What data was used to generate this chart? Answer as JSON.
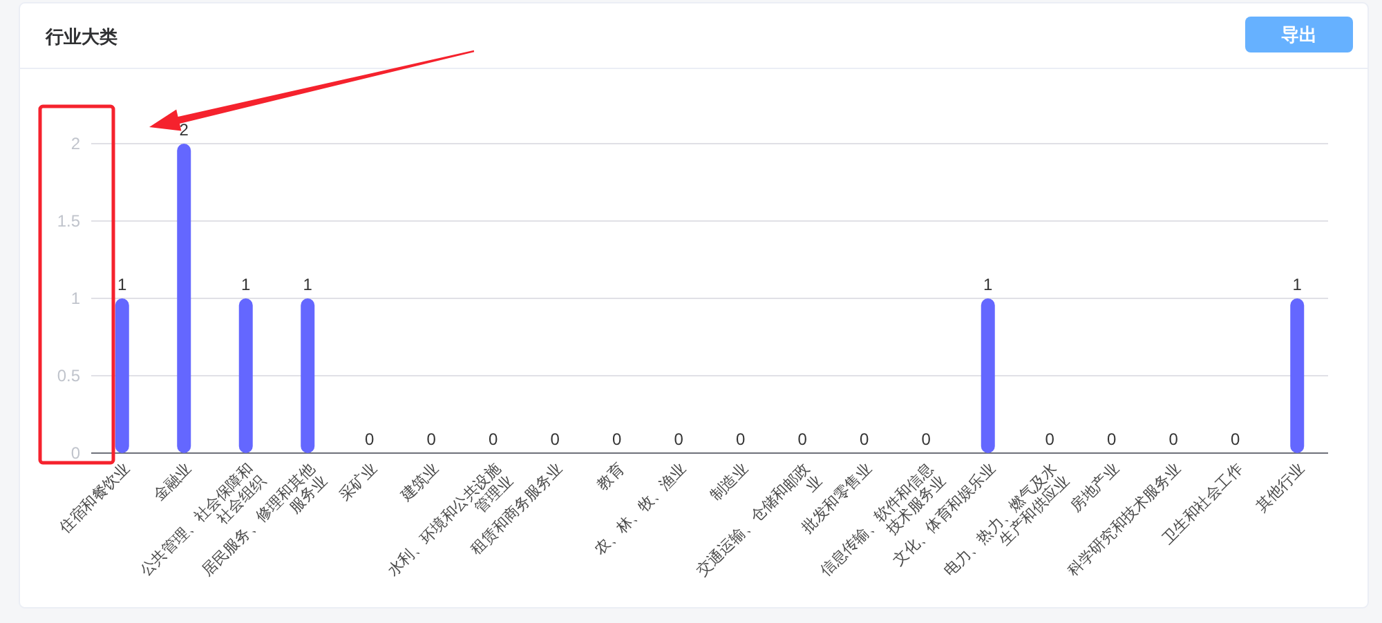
{
  "chart_data": {
    "type": "bar",
    "title": "行业大类",
    "categories": [
      "住宿和餐饮业",
      "金融业",
      "公共管理、社会保障和社会组织",
      "居民服务、修理和其他服务业",
      "采矿业",
      "建筑业",
      "水利、环境和公共设施管理业",
      "租赁和商务服务业",
      "教育",
      "农、林、牧、渔业",
      "制造业",
      "交通运输、仓储和邮政业",
      "批发和零售业",
      "信息传输、软件和信息技术服务业",
      "文化、体育和娱乐业",
      "电力、热力、燃气及水生产和供应业",
      "房地产业",
      "科学研究和技术服务业",
      "卫生和社会工作",
      "其他行业"
    ],
    "values": [
      1,
      2,
      1,
      1,
      0,
      0,
      0,
      0,
      0,
      0,
      0,
      0,
      0,
      0,
      1,
      0,
      0,
      0,
      0,
      1
    ],
    "color": "#6467ff",
    "ylim": [
      0,
      2
    ],
    "yticks": [
      0,
      0.5,
      1,
      1.5,
      2
    ],
    "grid": "y",
    "data_labels": true,
    "annotations": [
      "导出"
    ]
  }
}
